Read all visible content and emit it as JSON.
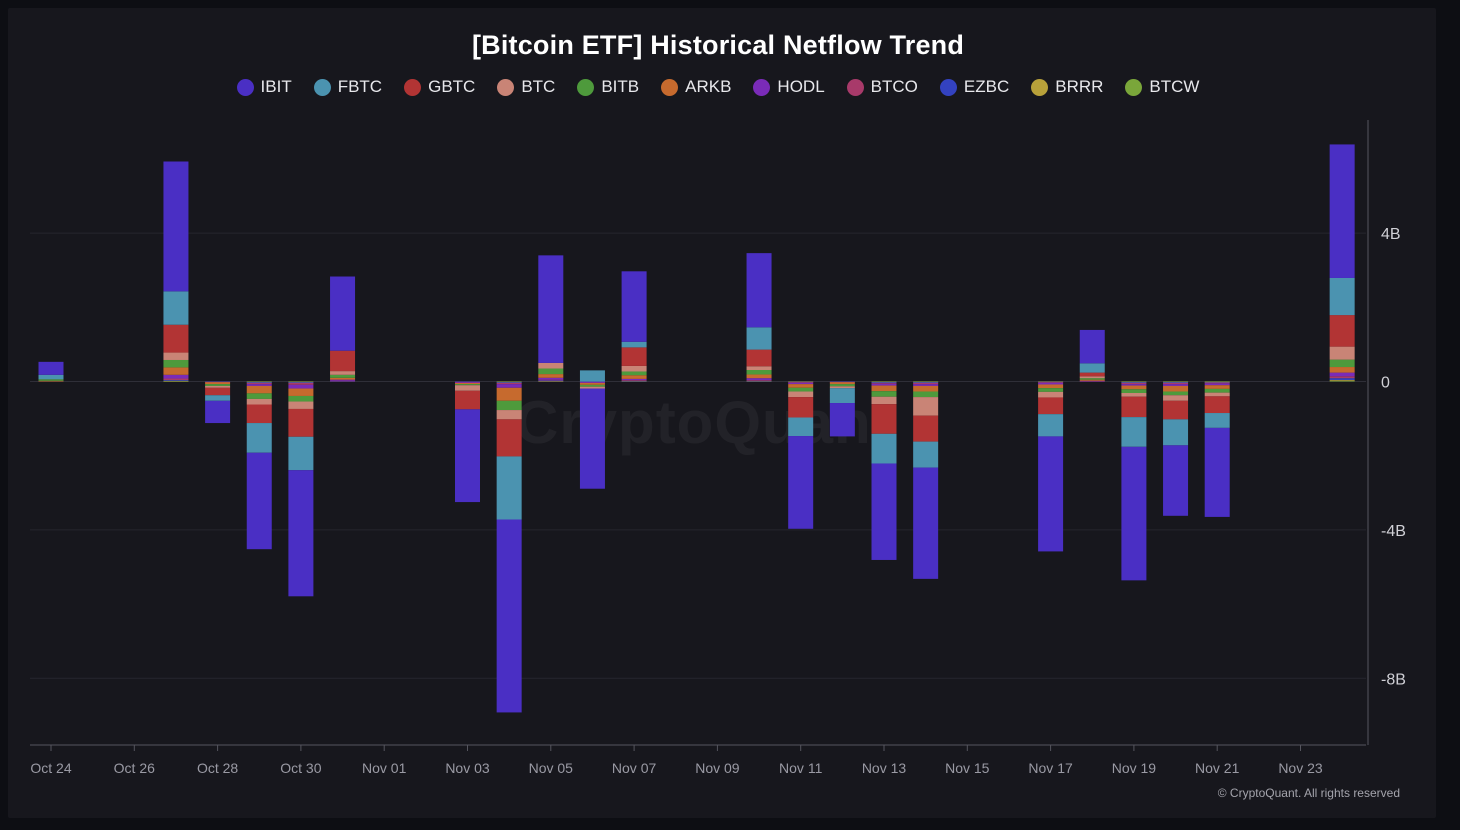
{
  "title": "[Bitcoin ETF] Historical Netflow Trend",
  "watermark": "CryptoQuant",
  "copyright": "© CryptoQuant. All rights reserved",
  "colors": {
    "IBIT": "#4a2fc4",
    "FBTC": "#4b93b0",
    "GBTC": "#b23434",
    "BTC": "#c98476",
    "BITB": "#4e9a3c",
    "ARKB": "#c66a2e",
    "HODL": "#7a2bb8",
    "BTCO": "#a83a6a",
    "EZBC": "#3342c0",
    "BRRR": "#b8a13a",
    "BTCW": "#7aa63a"
  },
  "chart_data": {
    "type": "bar",
    "stacked": true,
    "title": "[Bitcoin ETF] Historical Netflow Trend",
    "xlabel": "",
    "ylabel": "",
    "y_unit": "B",
    "ylim": [
      -9.9,
      7
    ],
    "y_ticks": [
      4,
      0,
      -4,
      -8
    ],
    "y_tick_labels": [
      "4B",
      "0",
      "-4B",
      "-8B"
    ],
    "x_tick_labels": [
      "Oct 24",
      "Oct 26",
      "Oct 28",
      "Oct 30",
      "Nov 01",
      "Nov 03",
      "Nov 05",
      "Nov 07",
      "Nov 09",
      "Nov 11",
      "Nov 13",
      "Nov 15",
      "Nov 17",
      "Nov 19",
      "Nov 21",
      "Nov 23"
    ],
    "legend_position": "top-center",
    "grid": true,
    "series_order": [
      "IBIT",
      "FBTC",
      "GBTC",
      "BTC",
      "BITB",
      "ARKB",
      "HODL",
      "BTCO",
      "EZBC",
      "BRRR",
      "BTCW"
    ],
    "dates": [
      "Oct 24",
      "Oct 27",
      "Oct 28",
      "Oct 29",
      "Oct 30",
      "Oct 31",
      "Nov 03",
      "Nov 04",
      "Nov 05",
      "Nov 06",
      "Nov 07",
      "Nov 10",
      "Nov 11",
      "Nov 12",
      "Nov 13",
      "Nov 14",
      "Nov 17",
      "Nov 18",
      "Nov 19",
      "Nov 20",
      "Nov 21",
      "Nov 24"
    ],
    "series": [
      {
        "name": "IBIT",
        "values": [
          0.35,
          3.5,
          -0.6,
          -2.6,
          -3.4,
          2.0,
          -2.5,
          -5.2,
          2.9,
          -2.7,
          1.9,
          2.0,
          -2.5,
          -0.9,
          -2.6,
          -3.0,
          -3.1,
          0.9,
          -3.6,
          -1.9,
          -2.4,
          3.6
        ]
      },
      {
        "name": "FBTC",
        "values": [
          0.12,
          0.9,
          -0.15,
          -0.8,
          -0.9,
          0.0,
          0.0,
          -1.7,
          0.0,
          0.3,
          0.15,
          0.6,
          -0.5,
          -0.4,
          -0.8,
          -0.7,
          -0.6,
          0.25,
          -0.8,
          -0.7,
          -0.4,
          1.0
        ]
      },
      {
        "name": "GBTC",
        "values": [
          0.0,
          0.75,
          -0.2,
          -0.5,
          -0.75,
          0.55,
          -0.5,
          -1.0,
          0.0,
          0.0,
          0.5,
          0.45,
          -0.55,
          0.0,
          -0.8,
          -0.7,
          -0.45,
          0.1,
          -0.55,
          -0.5,
          -0.45,
          0.85
        ]
      },
      {
        "name": "BTC",
        "values": [
          0.0,
          0.2,
          -0.05,
          -0.15,
          -0.2,
          0.1,
          -0.15,
          -0.25,
          0.15,
          -0.05,
          0.15,
          0.1,
          -0.15,
          -0.05,
          -0.2,
          -0.5,
          -0.15,
          0.05,
          -0.1,
          -0.15,
          -0.1,
          0.35
        ]
      },
      {
        "name": "BITB",
        "values": [
          0.04,
          0.2,
          -0.05,
          -0.15,
          -0.15,
          0.08,
          -0.03,
          -0.25,
          0.15,
          -0.05,
          0.1,
          0.12,
          -0.1,
          -0.06,
          -0.15,
          -0.15,
          -0.1,
          0.04,
          -0.1,
          -0.1,
          -0.1,
          0.2
        ]
      },
      {
        "name": "ARKB",
        "values": [
          0.02,
          0.2,
          -0.05,
          -0.2,
          -0.2,
          0.05,
          -0.03,
          -0.35,
          0.1,
          -0.05,
          0.1,
          0.1,
          -0.1,
          -0.05,
          -0.15,
          -0.15,
          -0.1,
          0.03,
          -0.1,
          -0.15,
          -0.1,
          0.15
        ]
      },
      {
        "name": "HODL",
        "values": [
          0.0,
          0.1,
          0.0,
          -0.05,
          -0.1,
          0.03,
          -0.02,
          -0.1,
          0.05,
          -0.02,
          0.03,
          0.05,
          -0.03,
          0.0,
          -0.05,
          -0.05,
          -0.04,
          0.01,
          -0.04,
          -0.05,
          -0.05,
          0.1
        ]
      },
      {
        "name": "BTCO",
        "values": [
          0.0,
          0.04,
          -0.01,
          -0.03,
          -0.05,
          0.01,
          -0.01,
          -0.03,
          0.02,
          -0.01,
          0.02,
          0.02,
          -0.02,
          -0.01,
          -0.02,
          -0.03,
          -0.02,
          0.01,
          -0.03,
          -0.03,
          -0.02,
          0.05
        ]
      },
      {
        "name": "EZBC",
        "values": [
          0.0,
          0.02,
          -0.01,
          -0.02,
          -0.02,
          0.01,
          -0.01,
          -0.02,
          0.02,
          -0.01,
          0.01,
          0.01,
          -0.01,
          -0.01,
          -0.02,
          -0.02,
          -0.01,
          0.0,
          -0.02,
          -0.02,
          -0.01,
          0.05
        ]
      },
      {
        "name": "BRRR",
        "values": [
          0.0,
          0.01,
          0.0,
          -0.01,
          -0.01,
          0.0,
          0.0,
          -0.01,
          0.01,
          0.0,
          0.01,
          0.01,
          -0.01,
          0.0,
          -0.01,
          -0.01,
          -0.01,
          0.0,
          -0.01,
          -0.01,
          -0.01,
          0.02
        ]
      },
      {
        "name": "BTCW",
        "values": [
          0.0,
          0.01,
          0.0,
          -0.01,
          -0.01,
          0.0,
          0.0,
          -0.01,
          0.0,
          0.0,
          0.0,
          0.0,
          0.0,
          0.0,
          -0.01,
          -0.01,
          0.0,
          0.0,
          -0.01,
          -0.01,
          -0.01,
          0.02
        ]
      }
    ]
  }
}
